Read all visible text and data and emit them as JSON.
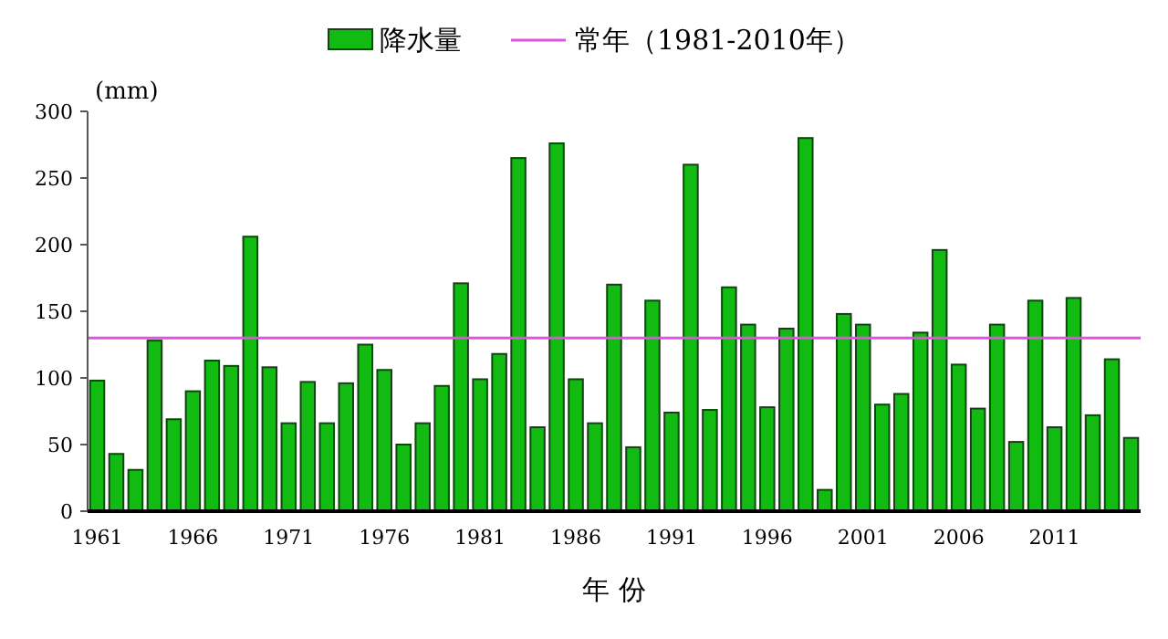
{
  "chart_data": {
    "type": "bar",
    "xlabel": "年 份",
    "ylabel": "(mm)",
    "categories": [
      "1961",
      null,
      null,
      null,
      null,
      "1966",
      null,
      null,
      null,
      null,
      "1971",
      null,
      null,
      null,
      null,
      "1976",
      null,
      null,
      null,
      null,
      "1981",
      null,
      null,
      null,
      null,
      "1986",
      null,
      null,
      null,
      null,
      "1991",
      null,
      null,
      null,
      null,
      "1996",
      null,
      null,
      null,
      null,
      "2001",
      null,
      null,
      null,
      null,
      "2006",
      null,
      null,
      null,
      null,
      "2011",
      null,
      null,
      null,
      null
    ],
    "series": [
      {
        "name": "降水量",
        "color": "#11bb11",
        "values": [
          98,
          43,
          31,
          128,
          69,
          90,
          113,
          109,
          206,
          108,
          66,
          97,
          66,
          96,
          125,
          106,
          50,
          66,
          94,
          171,
          99,
          118,
          265,
          63,
          276,
          99,
          66,
          170,
          48,
          158,
          74,
          260,
          76,
          168,
          140,
          78,
          137,
          280,
          16,
          148,
          140,
          80,
          88,
          134,
          196,
          110,
          77,
          140,
          52,
          158,
          63,
          160,
          72,
          114,
          55
        ]
      }
    ],
    "ref_lines": [
      {
        "axis": "y",
        "value": 130,
        "label": "常年（1981-2010年）",
        "color": "#dd55dd"
      }
    ],
    "ylim": [
      0,
      300
    ],
    "yticks": [
      0,
      50,
      100,
      150,
      200,
      250,
      300
    ],
    "legend": "top",
    "grid": false
  }
}
